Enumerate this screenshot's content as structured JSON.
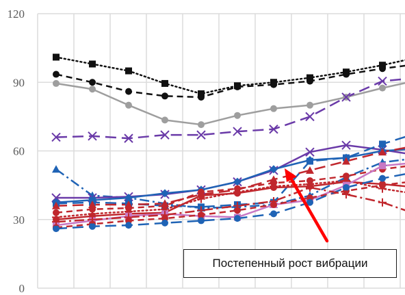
{
  "chart_data": {
    "type": "line",
    "title": "",
    "xlabel": "",
    "ylabel": "",
    "ylim": [
      0,
      120
    ],
    "yticks": [
      0,
      30,
      60,
      90,
      120
    ],
    "grid": "vertical and horizontal",
    "x": [
      1,
      2,
      3,
      4,
      5,
      6,
      7,
      8,
      9,
      10,
      11
    ],
    "series": [
      {
        "color": "#111111",
        "dash": "dotted",
        "marker": "square",
        "values": [
          101,
          98,
          95,
          89.5,
          85,
          88.5,
          90,
          92,
          94.5,
          97.5,
          101
        ]
      },
      {
        "color": "#111111",
        "dash": "dashed",
        "marker": "circle",
        "values": [
          93.5,
          90,
          86,
          84,
          83.5,
          88,
          89,
          90.5,
          93.5,
          96,
          98
        ]
      },
      {
        "color": "#9e9e9e",
        "dash": "solid",
        "marker": "circle",
        "values": [
          89.5,
          87,
          80,
          73.5,
          71.5,
          75.5,
          78.5,
          80,
          83.5,
          87.5,
          91
        ]
      },
      {
        "color": "#6a3aa8",
        "dash": "longdash",
        "marker": "x",
        "values": [
          66,
          66.5,
          65.5,
          67,
          67,
          68.5,
          69.5,
          75,
          83.5,
          90.5,
          92
        ]
      },
      {
        "color": "#1f63b5",
        "dash": "dashdot",
        "marker": "triangle",
        "values": [
          52,
          40.5,
          39.5,
          37,
          35,
          35.5,
          36.5,
          40.5,
          48.5,
          55,
          57
        ]
      },
      {
        "color": "#6a3aa8",
        "dash": "solid",
        "marker": "x",
        "values": [
          39.5,
          39.5,
          40,
          41,
          43,
          46.5,
          51.5,
          59.5,
          62.5,
          60.5,
          58
        ]
      },
      {
        "color": "#1f63b5",
        "dash": "solid",
        "marker": "diamond",
        "values": [
          37.5,
          38.5,
          39.5,
          41.5,
          43,
          46.5,
          52,
          56,
          57,
          60,
          61
        ]
      },
      {
        "color": "#1f63b5",
        "dash": "longdash",
        "marker": "square",
        "values": [
          37,
          37.5,
          37,
          36,
          35.5,
          36.5,
          37.5,
          55.5,
          57,
          63,
          68
        ]
      },
      {
        "color": "#c0272d",
        "dash": "longdash",
        "marker": "triangle",
        "values": [
          36,
          36.5,
          36.5,
          37,
          41,
          43,
          47.5,
          51.5,
          55.5,
          59.5,
          62.5
        ]
      },
      {
        "color": "#c0272d",
        "dash": "dashed",
        "marker": "circle",
        "values": [
          33,
          34.5,
          35,
          36,
          42,
          43.5,
          46,
          47,
          49,
          52,
          54
        ]
      },
      {
        "color": "#c0272d",
        "dash": "dotted",
        "marker": "plus",
        "values": [
          31,
          32.5,
          33.5,
          34.5,
          39,
          42,
          44.5,
          45.5,
          47,
          43.5,
          41
        ]
      },
      {
        "color": "#c0272d",
        "dash": "solid",
        "marker": "circle",
        "values": [
          30,
          31.5,
          32.5,
          33,
          40.5,
          41.5,
          44,
          44.5,
          46.5,
          45.5,
          44
        ]
      },
      {
        "color": "#c878c4",
        "dash": "solid",
        "marker": "square",
        "values": [
          27.5,
          29.5,
          31.5,
          32.5,
          31.5,
          31,
          36.5,
          38.5,
          45,
          53.5,
          55
        ]
      },
      {
        "color": "#c0272d",
        "dash": "dashed",
        "marker": "circle",
        "values": [
          26.5,
          28,
          29.5,
          30.5,
          32,
          34,
          36.5,
          39.5,
          42.5,
          45,
          47
        ]
      },
      {
        "color": "#1f63b5",
        "dash": "longdash",
        "marker": "circle",
        "values": [
          26,
          27,
          27.5,
          28.5,
          29.5,
          30.5,
          32.5,
          37.5,
          44,
          48,
          51
        ]
      },
      {
        "color": "#c0272d",
        "dash": "dashdot",
        "marker": "plus",
        "values": [
          29,
          30,
          31,
          32,
          34,
          36,
          38,
          44,
          41,
          37.5,
          32
        ]
      }
    ],
    "annotation": {
      "text": "Постепенный рост вибрации",
      "arrow_color": "#ff0000"
    }
  }
}
